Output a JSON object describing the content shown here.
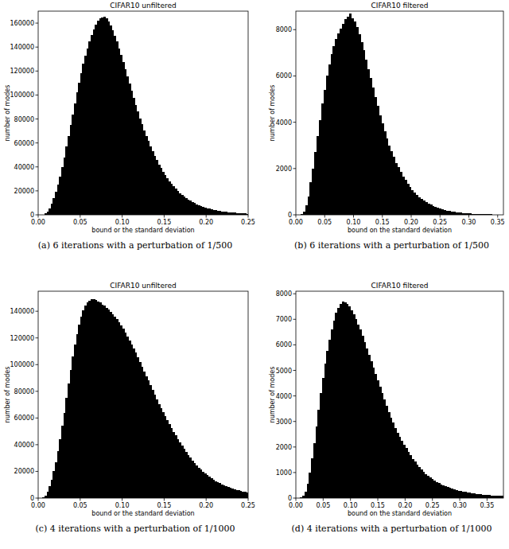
{
  "chart_data": [
    {
      "type": "histogram",
      "title": "CIFAR10 unfiltered",
      "x_label": "bound or the standard deviation",
      "y_label": "number of modes",
      "caption": "(a) 6 iterations with a perturbation of 1/500",
      "color": "#000000",
      "xlim": [
        0,
        0.25
      ],
      "ylim": [
        0,
        170000
      ],
      "xticks": [
        {
          "value": 0,
          "label": "0.00"
        },
        0.05,
        {
          "value": 0.1,
          "label": "0.10"
        },
        0.15,
        {
          "value": 0.2,
          "label": "0.20"
        },
        0.25
      ],
      "yticks": [
        0,
        20000,
        40000,
        60000,
        80000,
        100000,
        120000,
        140000,
        160000
      ],
      "bins": [
        0,
        0.0025,
        0.005,
        0.0075,
        0.01,
        0.0125,
        0.015,
        0.0175,
        0.02,
        0.0225,
        0.025,
        0.0275,
        0.03,
        0.0325,
        0.035,
        0.0375,
        0.04,
        0.0425,
        0.045,
        0.0475,
        0.05,
        0.0525,
        0.055,
        0.0575,
        0.06,
        0.0625,
        0.065,
        0.0675,
        0.07,
        0.0725,
        0.075,
        0.0775,
        0.08,
        0.0825,
        0.085,
        0.0875,
        0.09,
        0.0925,
        0.095,
        0.0975,
        0.1,
        0.1025,
        0.105,
        0.1075,
        0.11,
        0.1125,
        0.115,
        0.1175,
        0.12,
        0.1225,
        0.125,
        0.1275,
        0.13,
        0.1325,
        0.135,
        0.1375,
        0.14,
        0.1425,
        0.145,
        0.1475,
        0.15,
        0.1525,
        0.155,
        0.1575,
        0.16,
        0.1625,
        0.165,
        0.1675,
        0.17,
        0.1725,
        0.175,
        0.1775,
        0.18,
        0.1825,
        0.185,
        0.1875,
        0.19,
        0.1925,
        0.195,
        0.1975,
        0.2,
        0.2025,
        0.205,
        0.2075,
        0.21,
        0.2125,
        0.215,
        0.2175,
        0.22,
        0.2225,
        0.225,
        0.2275,
        0.23,
        0.2325,
        0.235,
        0.2375,
        0.24,
        0.2425,
        0.245,
        0.2475,
        0.25
      ],
      "values": [
        0,
        0,
        200,
        1000,
        2500,
        5000,
        9000,
        14000,
        19000,
        25000,
        32000,
        40000,
        48000,
        57000,
        66000,
        75000,
        84000,
        93000,
        102000,
        110000,
        118000,
        126000,
        133000,
        139000,
        145000,
        150000,
        155000,
        159000,
        162000,
        164000,
        165000,
        165500,
        164000,
        161500,
        158000,
        154000,
        149500,
        144500,
        139000,
        133500,
        127500,
        121500,
        115500,
        109500,
        103500,
        97500,
        91500,
        86000,
        80500,
        75500,
        70500,
        66000,
        61500,
        57000,
        53000,
        49000,
        45500,
        42000,
        39000,
        36000,
        33000,
        30500,
        28000,
        25800,
        23700,
        21700,
        19900,
        18200,
        16700,
        15300,
        14000,
        12800,
        11700,
        10700,
        9800,
        8900,
        8100,
        7400,
        6700,
        6100,
        5600,
        5100,
        4650,
        4250,
        3900,
        3550,
        3250,
        2950,
        2700,
        2450,
        2250,
        2050,
        1850,
        1700,
        1550,
        1400,
        1280,
        1170,
        1060,
        970
      ]
    },
    {
      "type": "histogram",
      "title": "CIFAR10 filtered",
      "x_label": "bound on the standard deviation",
      "y_label": "number of modes",
      "caption": "(b) 6 iterations with a perturbation of 1/500",
      "color": "#000000",
      "xlim": [
        0,
        0.36
      ],
      "ylim": [
        0,
        8800
      ],
      "xticks": [
        {
          "value": 0,
          "label": "0.00"
        },
        0.05,
        {
          "value": 0.1,
          "label": "0.10"
        },
        0.15,
        {
          "value": 0.2,
          "label": "0.20"
        },
        0.25,
        {
          "value": 0.3,
          "label": "0.30"
        },
        0.35
      ],
      "yticks": [
        0,
        2000,
        4000,
        6000,
        8000
      ],
      "bins": [
        0,
        0.004,
        0.008,
        0.012,
        0.016,
        0.02,
        0.024,
        0.028,
        0.032,
        0.036,
        0.04,
        0.044,
        0.048,
        0.052,
        0.056,
        0.06,
        0.064,
        0.068,
        0.072,
        0.076,
        0.08,
        0.084,
        0.088,
        0.092,
        0.096,
        0.1,
        0.104,
        0.108,
        0.112,
        0.116,
        0.12,
        0.124,
        0.128,
        0.132,
        0.136,
        0.14,
        0.144,
        0.148,
        0.152,
        0.156,
        0.16,
        0.164,
        0.168,
        0.172,
        0.176,
        0.18,
        0.184,
        0.188,
        0.192,
        0.196,
        0.2,
        0.204,
        0.208,
        0.212,
        0.216,
        0.22,
        0.224,
        0.228,
        0.232,
        0.236,
        0.24,
        0.244,
        0.248,
        0.252,
        0.256,
        0.26,
        0.264,
        0.268,
        0.272,
        0.276,
        0.28,
        0.284,
        0.288,
        0.292,
        0.296,
        0.3,
        0.304,
        0.308,
        0.312,
        0.316,
        0.32,
        0.324,
        0.328,
        0.332,
        0.336,
        0.34,
        0.344,
        0.348,
        0.352,
        0.356,
        0.36
      ],
      "values": [
        0,
        5,
        40,
        150,
        400,
        800,
        1400,
        2000,
        2700,
        3400,
        4100,
        4800,
        5400,
        6000,
        6500,
        6950,
        7300,
        7600,
        7850,
        8050,
        8250,
        8450,
        8550,
        8700,
        8500,
        8350,
        8100,
        7800,
        7450,
        7100,
        6700,
        6300,
        5900,
        5500,
        5100,
        4700,
        4300,
        3950,
        3600,
        3300,
        3000,
        2750,
        2500,
        2250,
        2050,
        1850,
        1650,
        1500,
        1350,
        1200,
        1080,
        960,
        860,
        770,
        690,
        610,
        550,
        490,
        430,
        390,
        340,
        300,
        270,
        240,
        210,
        185,
        165,
        145,
        130,
        115,
        100,
        90,
        80,
        70,
        62,
        55,
        48,
        43,
        38,
        34,
        30,
        27,
        24,
        21,
        19,
        17,
        15,
        13,
        12,
        10
      ]
    },
    {
      "type": "histogram",
      "title": "CIFAR10 unfiltered",
      "x_label": "bound or the standard deviation",
      "y_label": "number of modes",
      "caption": "(c) 4 iterations with a perturbation of 1/1000",
      "color": "#000000",
      "xlim": [
        0,
        0.25
      ],
      "ylim": [
        0,
        155000
      ],
      "xticks": [
        {
          "value": 0,
          "label": "0.00"
        },
        0.05,
        {
          "value": 0.1,
          "label": "0.10"
        },
        0.15,
        {
          "value": 0.2,
          "label": "0.20"
        },
        0.25
      ],
      "yticks": [
        0,
        20000,
        40000,
        60000,
        80000,
        100000,
        120000,
        140000
      ],
      "bins": [
        0,
        0.0025,
        0.005,
        0.0075,
        0.01,
        0.0125,
        0.015,
        0.0175,
        0.02,
        0.0225,
        0.025,
        0.0275,
        0.03,
        0.0325,
        0.035,
        0.0375,
        0.04,
        0.0425,
        0.045,
        0.0475,
        0.05,
        0.0525,
        0.055,
        0.0575,
        0.06,
        0.0625,
        0.065,
        0.0675,
        0.07,
        0.0725,
        0.075,
        0.0775,
        0.08,
        0.0825,
        0.085,
        0.0875,
        0.09,
        0.0925,
        0.095,
        0.0975,
        0.1,
        0.1025,
        0.105,
        0.1075,
        0.11,
        0.1125,
        0.115,
        0.1175,
        0.12,
        0.1225,
        0.125,
        0.1275,
        0.13,
        0.1325,
        0.135,
        0.1375,
        0.14,
        0.1425,
        0.145,
        0.1475,
        0.15,
        0.1525,
        0.155,
        0.1575,
        0.16,
        0.1625,
        0.165,
        0.1675,
        0.17,
        0.1725,
        0.175,
        0.1775,
        0.18,
        0.1825,
        0.185,
        0.1875,
        0.19,
        0.1925,
        0.195,
        0.1975,
        0.2,
        0.2025,
        0.205,
        0.2075,
        0.21,
        0.2125,
        0.215,
        0.2175,
        0.22,
        0.2225,
        0.225,
        0.2275,
        0.23,
        0.2325,
        0.235,
        0.2375,
        0.24,
        0.2425,
        0.245,
        0.2475,
        0.25
      ],
      "values": [
        0,
        50,
        500,
        2000,
        5000,
        9000,
        14000,
        20000,
        27000,
        35000,
        44000,
        54000,
        64000,
        75000,
        86000,
        96000,
        106000,
        115000,
        123000,
        130000,
        136000,
        140500,
        144000,
        146500,
        148000,
        149000,
        149000,
        148500,
        147500,
        146500,
        145000,
        144000,
        142500,
        141000,
        139500,
        138000,
        136000,
        134000,
        132000,
        129500,
        127000,
        124000,
        121000,
        118000,
        115000,
        112000,
        109000,
        105500,
        102000,
        98500,
        95000,
        91500,
        88000,
        84500,
        81000,
        77500,
        74000,
        70500,
        67500,
        64500,
        61500,
        58500,
        55500,
        52500,
        49700,
        47000,
        44300,
        41700,
        39200,
        36800,
        34500,
        32300,
        30200,
        28200,
        26300,
        24500,
        22800,
        21200,
        19700,
        18300,
        17000,
        15800,
        14700,
        13700,
        12800,
        11900,
        11100,
        10300,
        9600,
        8900,
        8300,
        7700,
        7200,
        6700,
        6200,
        5800,
        5400,
        5000,
        4700,
        4400
      ]
    },
    {
      "type": "histogram",
      "title": "CIFAR10 filtered",
      "x_label": "bound on the standard deviation",
      "y_label": "number of modes",
      "caption": "(d) 4 iterations with a perturbation of 1/1000",
      "color": "#000000",
      "xlim": [
        0,
        0.38
      ],
      "ylim": [
        0,
        8100
      ],
      "xticks": [
        {
          "value": 0,
          "label": "0.00"
        },
        0.05,
        {
          "value": 0.1,
          "label": "0.10"
        },
        0.15,
        {
          "value": 0.2,
          "label": "0.20"
        },
        0.25,
        {
          "value": 0.3,
          "label": "0.30"
        },
        0.35
      ],
      "yticks": [
        0,
        1000,
        2000,
        3000,
        4000,
        5000,
        6000,
        7000,
        8000
      ],
      "bins": [
        0,
        0.004,
        0.008,
        0.012,
        0.016,
        0.02,
        0.024,
        0.028,
        0.032,
        0.036,
        0.04,
        0.044,
        0.048,
        0.052,
        0.056,
        0.06,
        0.064,
        0.068,
        0.072,
        0.076,
        0.08,
        0.084,
        0.088,
        0.092,
        0.096,
        0.1,
        0.104,
        0.108,
        0.112,
        0.116,
        0.12,
        0.124,
        0.128,
        0.132,
        0.136,
        0.14,
        0.144,
        0.148,
        0.152,
        0.156,
        0.16,
        0.164,
        0.168,
        0.172,
        0.176,
        0.18,
        0.184,
        0.188,
        0.192,
        0.196,
        0.2,
        0.204,
        0.208,
        0.212,
        0.216,
        0.22,
        0.224,
        0.228,
        0.232,
        0.236,
        0.24,
        0.244,
        0.248,
        0.252,
        0.256,
        0.26,
        0.264,
        0.268,
        0.272,
        0.276,
        0.28,
        0.284,
        0.288,
        0.292,
        0.296,
        0.3,
        0.304,
        0.308,
        0.312,
        0.316,
        0.32,
        0.324,
        0.328,
        0.332,
        0.336,
        0.34,
        0.344,
        0.348,
        0.352,
        0.356,
        0.36,
        0.364,
        0.368,
        0.372,
        0.376,
        0.38
      ],
      "values": [
        0,
        2,
        20,
        80,
        250,
        550,
        1000,
        1550,
        2150,
        2800,
        3450,
        4100,
        4700,
        5250,
        5750,
        6200,
        6600,
        6950,
        7250,
        7450,
        7600,
        7700,
        7650,
        7600,
        7500,
        7350,
        7200,
        7000,
        6800,
        6600,
        6350,
        6100,
        5850,
        5600,
        5350,
        5100,
        4850,
        4600,
        4350,
        4100,
        3850,
        3600,
        3350,
        3150,
        2950,
        2750,
        2550,
        2400,
        2250,
        2100,
        1950,
        1800,
        1670,
        1540,
        1420,
        1310,
        1210,
        1110,
        1020,
        940,
        870,
        800,
        740,
        680,
        630,
        580,
        540,
        500,
        460,
        425,
        395,
        365,
        340,
        315,
        295,
        275,
        255,
        240,
        225,
        210,
        195,
        185,
        170,
        160,
        150,
        140,
        130,
        122,
        115,
        108,
        100,
        95,
        90,
        85,
        80
      ]
    }
  ]
}
